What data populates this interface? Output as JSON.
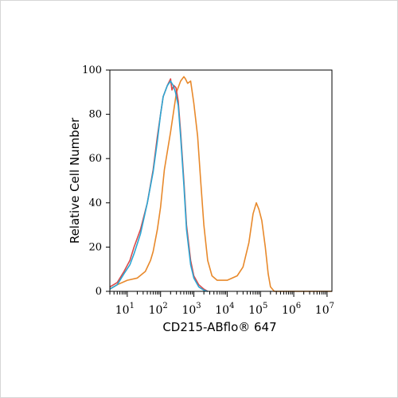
{
  "chart_data": {
    "type": "line",
    "xlabel": "CD215-ABflo® 647",
    "ylabel": "Relative Cell Number",
    "x_scale": "log",
    "xlim": [
      3,
      14000000
    ],
    "ylim": [
      0,
      100
    ],
    "y_ticks": [
      "0",
      "20",
      "40",
      "60",
      "80",
      "100"
    ],
    "x_ticks": [
      {
        "base": "10",
        "exp": "1"
      },
      {
        "base": "10",
        "exp": "2"
      },
      {
        "base": "10",
        "exp": "3"
      },
      {
        "base": "10",
        "exp": "4"
      },
      {
        "base": "10",
        "exp": "5"
      },
      {
        "base": "10",
        "exp": "6"
      },
      {
        "base": "10",
        "exp": "7"
      }
    ],
    "legend": "none",
    "grid": false,
    "series": [
      {
        "color": "#e8892b",
        "points": [
          [
            3,
            1
          ],
          [
            5,
            3
          ],
          [
            10,
            5
          ],
          [
            20,
            6
          ],
          [
            35,
            9
          ],
          [
            50,
            14
          ],
          [
            60,
            18
          ],
          [
            80,
            28
          ],
          [
            100,
            38
          ],
          [
            130,
            55
          ],
          [
            200,
            72
          ],
          [
            300,
            90
          ],
          [
            400,
            95
          ],
          [
            500,
            97
          ],
          [
            560,
            96
          ],
          [
            650,
            94
          ],
          [
            800,
            95
          ],
          [
            1000,
            85
          ],
          [
            1300,
            70
          ],
          [
            1600,
            50
          ],
          [
            2000,
            30
          ],
          [
            2600,
            14
          ],
          [
            3500,
            7
          ],
          [
            5000,
            5
          ],
          [
            10000,
            5
          ],
          [
            20000,
            7
          ],
          [
            30000,
            11
          ],
          [
            45000,
            22
          ],
          [
            60000,
            35
          ],
          [
            75000,
            40
          ],
          [
            90000,
            37
          ],
          [
            110000,
            32
          ],
          [
            140000,
            20
          ],
          [
            170000,
            8
          ],
          [
            200000,
            2
          ],
          [
            260000,
            0
          ],
          [
            14000000,
            0
          ]
        ]
      },
      {
        "color": "#d94b4b",
        "points": [
          [
            3,
            2
          ],
          [
            5,
            4
          ],
          [
            8,
            9
          ],
          [
            12,
            14
          ],
          [
            16,
            20
          ],
          [
            25,
            28
          ],
          [
            40,
            40
          ],
          [
            60,
            55
          ],
          [
            80,
            70
          ],
          [
            100,
            80
          ],
          [
            120,
            88
          ],
          [
            160,
            93
          ],
          [
            200,
            96
          ],
          [
            220,
            91
          ],
          [
            250,
            93
          ],
          [
            290,
            92
          ],
          [
            340,
            86
          ],
          [
            400,
            72
          ],
          [
            500,
            50
          ],
          [
            600,
            30
          ],
          [
            800,
            14
          ],
          [
            1000,
            7
          ],
          [
            1400,
            3
          ],
          [
            2000,
            1
          ],
          [
            2600,
            0
          ]
        ]
      },
      {
        "color": "#2ba6d4",
        "points": [
          [
            3,
            1
          ],
          [
            5,
            3
          ],
          [
            8,
            8
          ],
          [
            12,
            12
          ],
          [
            16,
            17
          ],
          [
            25,
            26
          ],
          [
            40,
            40
          ],
          [
            60,
            54
          ],
          [
            80,
            68
          ],
          [
            100,
            80
          ],
          [
            120,
            88
          ],
          [
            160,
            93
          ],
          [
            200,
            95
          ],
          [
            240,
            93
          ],
          [
            280,
            90
          ],
          [
            340,
            84
          ],
          [
            400,
            70
          ],
          [
            500,
            48
          ],
          [
            600,
            28
          ],
          [
            800,
            12
          ],
          [
            1000,
            6
          ],
          [
            1400,
            2
          ],
          [
            2000,
            0.5
          ],
          [
            2600,
            0
          ]
        ]
      }
    ]
  }
}
